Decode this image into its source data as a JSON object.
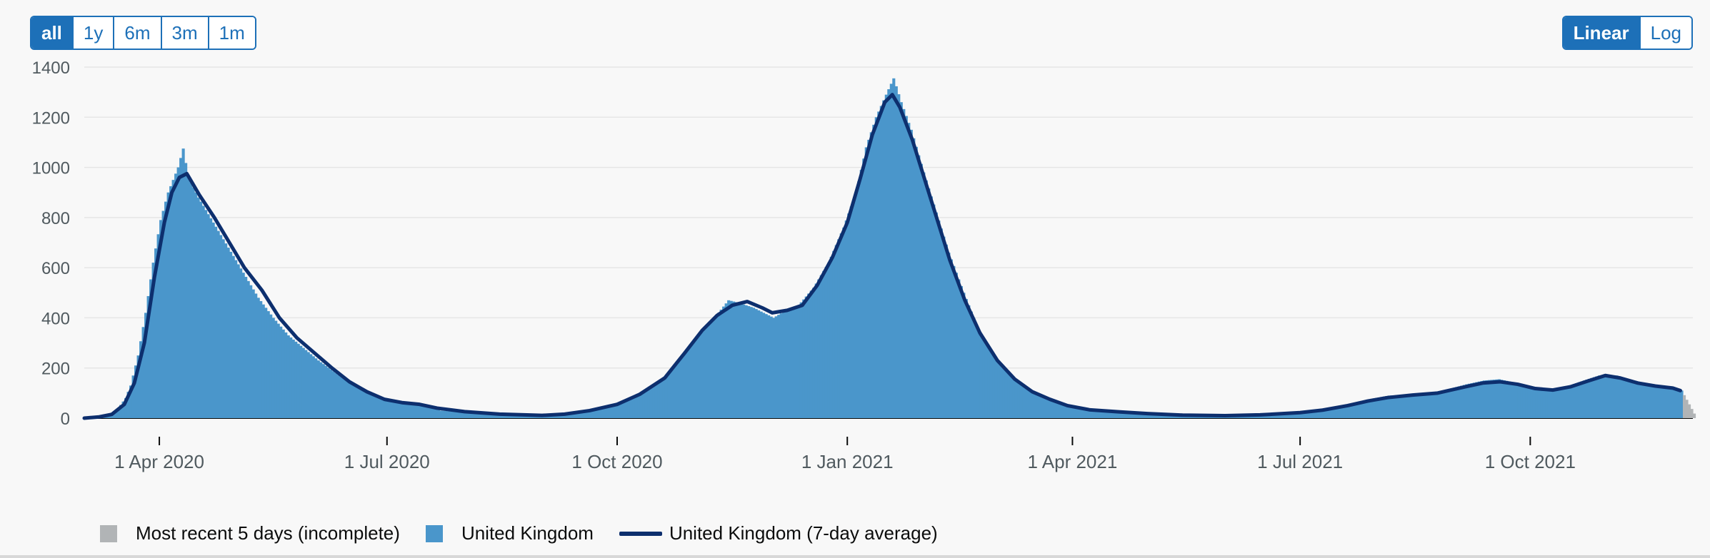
{
  "controls": {
    "range_buttons": [
      {
        "label": "all",
        "active": true
      },
      {
        "label": "1y",
        "active": false
      },
      {
        "label": "6m",
        "active": false
      },
      {
        "label": "3m",
        "active": false
      },
      {
        "label": "1m",
        "active": false
      }
    ],
    "scale_buttons": [
      {
        "label": "Linear",
        "active": true
      },
      {
        "label": "Log",
        "active": false
      }
    ]
  },
  "legend": {
    "incomplete": "Most recent 5 days (incomplete)",
    "daily": "United Kingdom",
    "average": "United Kingdom (7-day average)"
  },
  "colors": {
    "bar": "#4a96cb",
    "line": "#0d2f6e",
    "incomplete": "#b1b4b6",
    "accent": "#1d70b8"
  },
  "chart_data": {
    "type": "bar",
    "title": "",
    "xlabel": "",
    "ylabel": "",
    "ylim": [
      0,
      1400
    ],
    "y_ticks": [
      0,
      200,
      400,
      600,
      800,
      1000,
      1200,
      1400
    ],
    "x_ticks": [
      {
        "date": "2020-04-01",
        "label": "1 Apr 2020"
      },
      {
        "date": "2020-07-01",
        "label": "1 Jul 2020"
      },
      {
        "date": "2020-10-01",
        "label": "1 Oct 2020"
      },
      {
        "date": "2021-01-01",
        "label": "1 Jan 2021"
      },
      {
        "date": "2021-04-01",
        "label": "1 Apr 2021"
      },
      {
        "date": "2021-07-01",
        "label": "1 Jul 2021"
      },
      {
        "date": "2021-10-01",
        "label": "1 Oct 2021"
      }
    ],
    "x_range": [
      "2020-03-02",
      "2021-12-05"
    ],
    "incomplete_days": 5,
    "series": [
      {
        "name": "United Kingdom",
        "kind": "bar",
        "points": [
          [
            "2020-03-02",
            0
          ],
          [
            "2020-03-06",
            3
          ],
          [
            "2020-03-10",
            8
          ],
          [
            "2020-03-14",
            25
          ],
          [
            "2020-03-18",
            80
          ],
          [
            "2020-03-20",
            130
          ],
          [
            "2020-03-23",
            250
          ],
          [
            "2020-03-26",
            420
          ],
          [
            "2020-03-29",
            620
          ],
          [
            "2020-04-01",
            790
          ],
          [
            "2020-04-04",
            900
          ],
          [
            "2020-04-08",
            1000
          ],
          [
            "2020-04-10",
            1075
          ],
          [
            "2020-04-12",
            960
          ],
          [
            "2020-04-16",
            880
          ],
          [
            "2020-04-22",
            780
          ],
          [
            "2020-04-28",
            680
          ],
          [
            "2020-05-04",
            580
          ],
          [
            "2020-05-10",
            480
          ],
          [
            "2020-05-16",
            400
          ],
          [
            "2020-05-22",
            330
          ],
          [
            "2020-05-28",
            280
          ],
          [
            "2020-06-03",
            230
          ],
          [
            "2020-06-10",
            180
          ],
          [
            "2020-06-17",
            130
          ],
          [
            "2020-06-24",
            95
          ],
          [
            "2020-07-01",
            75
          ],
          [
            "2020-07-08",
            60
          ],
          [
            "2020-07-15",
            50
          ],
          [
            "2020-07-22",
            30
          ],
          [
            "2020-08-01",
            22
          ],
          [
            "2020-08-15",
            15
          ],
          [
            "2020-09-01",
            12
          ],
          [
            "2020-09-10",
            18
          ],
          [
            "2020-09-20",
            35
          ],
          [
            "2020-10-01",
            60
          ],
          [
            "2020-10-10",
            100
          ],
          [
            "2020-10-20",
            170
          ],
          [
            "2020-10-28",
            270
          ],
          [
            "2020-11-04",
            360
          ],
          [
            "2020-11-10",
            420
          ],
          [
            "2020-11-14",
            470
          ],
          [
            "2020-11-18",
            460
          ],
          [
            "2020-11-24",
            440
          ],
          [
            "2020-11-28",
            420
          ],
          [
            "2020-12-02",
            400
          ],
          [
            "2020-12-07",
            430
          ],
          [
            "2020-12-12",
            450
          ],
          [
            "2020-12-18",
            520
          ],
          [
            "2020-12-24",
            620
          ],
          [
            "2020-12-30",
            760
          ],
          [
            "2021-01-04",
            900
          ],
          [
            "2021-01-08",
            1080
          ],
          [
            "2021-01-12",
            1200
          ],
          [
            "2021-01-16",
            1290
          ],
          [
            "2021-01-19",
            1355
          ],
          [
            "2021-01-22",
            1260
          ],
          [
            "2021-01-26",
            1150
          ],
          [
            "2021-01-31",
            980
          ],
          [
            "2021-02-05",
            820
          ],
          [
            "2021-02-10",
            660
          ],
          [
            "2021-02-16",
            500
          ],
          [
            "2021-02-22",
            350
          ],
          [
            "2021-03-01",
            240
          ],
          [
            "2021-03-08",
            160
          ],
          [
            "2021-03-15",
            110
          ],
          [
            "2021-03-22",
            80
          ],
          [
            "2021-03-29",
            50
          ],
          [
            "2021-04-08",
            30
          ],
          [
            "2021-04-20",
            25
          ],
          [
            "2021-05-01",
            18
          ],
          [
            "2021-05-15",
            12
          ],
          [
            "2021-06-01",
            10
          ],
          [
            "2021-06-15",
            14
          ],
          [
            "2021-07-01",
            25
          ],
          [
            "2021-07-10",
            35
          ],
          [
            "2021-07-20",
            55
          ],
          [
            "2021-07-28",
            75
          ],
          [
            "2021-08-05",
            90
          ],
          [
            "2021-08-15",
            95
          ],
          [
            "2021-08-25",
            105
          ],
          [
            "2021-09-05",
            135
          ],
          [
            "2021-09-12",
            150
          ],
          [
            "2021-09-18",
            155
          ],
          [
            "2021-09-25",
            140
          ],
          [
            "2021-10-01",
            120
          ],
          [
            "2021-10-08",
            110
          ],
          [
            "2021-10-15",
            125
          ],
          [
            "2021-10-22",
            150
          ],
          [
            "2021-10-28",
            170
          ],
          [
            "2021-11-04",
            170
          ],
          [
            "2021-11-10",
            145
          ],
          [
            "2021-11-17",
            135
          ],
          [
            "2021-11-24",
            120
          ],
          [
            "2021-11-30",
            110
          ]
        ]
      },
      {
        "name": "United Kingdom (7-day average)",
        "kind": "line",
        "points": [
          [
            "2020-03-02",
            0
          ],
          [
            "2020-03-08",
            5
          ],
          [
            "2020-03-13",
            15
          ],
          [
            "2020-03-18",
            55
          ],
          [
            "2020-03-22",
            140
          ],
          [
            "2020-03-26",
            300
          ],
          [
            "2020-03-30",
            560
          ],
          [
            "2020-04-03",
            780
          ],
          [
            "2020-04-06",
            900
          ],
          [
            "2020-04-09",
            960
          ],
          [
            "2020-04-12",
            975
          ],
          [
            "2020-04-17",
            890
          ],
          [
            "2020-04-23",
            800
          ],
          [
            "2020-04-29",
            700
          ],
          [
            "2020-05-05",
            600
          ],
          [
            "2020-05-12",
            510
          ],
          [
            "2020-05-19",
            400
          ],
          [
            "2020-05-26",
            320
          ],
          [
            "2020-06-02",
            260
          ],
          [
            "2020-06-09",
            200
          ],
          [
            "2020-06-16",
            145
          ],
          [
            "2020-06-23",
            105
          ],
          [
            "2020-06-30",
            75
          ],
          [
            "2020-07-07",
            62
          ],
          [
            "2020-07-14",
            55
          ],
          [
            "2020-07-21",
            40
          ],
          [
            "2020-08-01",
            26
          ],
          [
            "2020-08-15",
            16
          ],
          [
            "2020-09-01",
            11
          ],
          [
            "2020-09-10",
            16
          ],
          [
            "2020-09-20",
            30
          ],
          [
            "2020-10-01",
            55
          ],
          [
            "2020-10-10",
            95
          ],
          [
            "2020-10-20",
            160
          ],
          [
            "2020-10-28",
            260
          ],
          [
            "2020-11-04",
            350
          ],
          [
            "2020-11-10",
            410
          ],
          [
            "2020-11-16",
            450
          ],
          [
            "2020-11-22",
            465
          ],
          [
            "2020-11-28",
            440
          ],
          [
            "2020-12-02",
            420
          ],
          [
            "2020-12-08",
            430
          ],
          [
            "2020-12-14",
            450
          ],
          [
            "2020-12-20",
            530
          ],
          [
            "2020-12-26",
            640
          ],
          [
            "2021-01-01",
            780
          ],
          [
            "2021-01-06",
            950
          ],
          [
            "2021-01-11",
            1130
          ],
          [
            "2021-01-16",
            1260
          ],
          [
            "2021-01-19",
            1290
          ],
          [
            "2021-01-22",
            1240
          ],
          [
            "2021-01-27",
            1110
          ],
          [
            "2021-02-01",
            950
          ],
          [
            "2021-02-06",
            790
          ],
          [
            "2021-02-11",
            630
          ],
          [
            "2021-02-17",
            470
          ],
          [
            "2021-02-23",
            340
          ],
          [
            "2021-03-02",
            230
          ],
          [
            "2021-03-09",
            155
          ],
          [
            "2021-03-16",
            105
          ],
          [
            "2021-03-23",
            75
          ],
          [
            "2021-03-30",
            50
          ],
          [
            "2021-04-08",
            33
          ],
          [
            "2021-04-20",
            25
          ],
          [
            "2021-05-01",
            18
          ],
          [
            "2021-05-15",
            12
          ],
          [
            "2021-06-01",
            10
          ],
          [
            "2021-06-15",
            13
          ],
          [
            "2021-07-01",
            22
          ],
          [
            "2021-07-10",
            32
          ],
          [
            "2021-07-20",
            50
          ],
          [
            "2021-07-28",
            68
          ],
          [
            "2021-08-05",
            82
          ],
          [
            "2021-08-15",
            92
          ],
          [
            "2021-08-25",
            100
          ],
          [
            "2021-09-05",
            125
          ],
          [
            "2021-09-12",
            140
          ],
          [
            "2021-09-19",
            145
          ],
          [
            "2021-09-26",
            135
          ],
          [
            "2021-10-03",
            118
          ],
          [
            "2021-10-10",
            112
          ],
          [
            "2021-10-17",
            125
          ],
          [
            "2021-10-24",
            148
          ],
          [
            "2021-10-31",
            170
          ],
          [
            "2021-11-06",
            160
          ],
          [
            "2021-11-13",
            140
          ],
          [
            "2021-11-20",
            128
          ],
          [
            "2021-11-27",
            120
          ],
          [
            "2021-11-30",
            110
          ]
        ]
      }
    ]
  }
}
